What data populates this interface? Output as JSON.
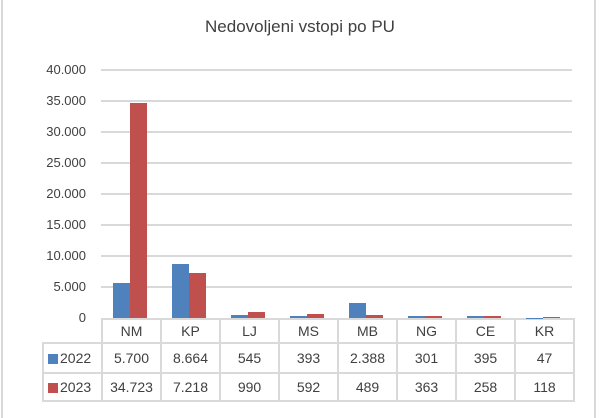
{
  "chart_data": {
    "type": "bar",
    "title": "Nedovoljeni vstopi po PU",
    "xlabel": "",
    "ylabel": "",
    "ylim": [
      0,
      40000
    ],
    "yticks": [
      "0",
      "5.000",
      "10.000",
      "15.000",
      "20.000",
      "25.000",
      "30.000",
      "35.000",
      "40.000"
    ],
    "categories": [
      "NM",
      "KP",
      "LJ",
      "MS",
      "MB",
      "NG",
      "CE",
      "KR"
    ],
    "series": [
      {
        "name": "2022",
        "color": "#4F81BD",
        "values": [
          5700,
          8664,
          545,
          393,
          2388,
          301,
          395,
          47
        ],
        "labels": [
          "5.700",
          "8.664",
          "545",
          "393",
          "2.388",
          "301",
          "395",
          "47"
        ]
      },
      {
        "name": "2023",
        "color": "#C0504D",
        "values": [
          34723,
          7218,
          990,
          592,
          489,
          363,
          258,
          118
        ],
        "labels": [
          "34.723",
          "7.218",
          "990",
          "592",
          "489",
          "363",
          "258",
          "118"
        ]
      }
    ],
    "grid": true,
    "legend_position": "data-table"
  }
}
